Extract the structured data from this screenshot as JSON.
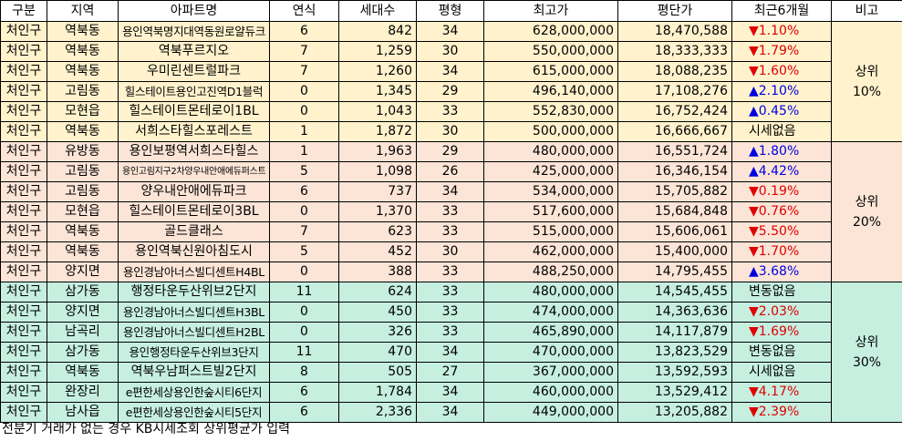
{
  "headers": [
    "구분",
    "지역",
    "아파트명",
    "연식",
    "세대수",
    "평형",
    "최고가",
    "평단가",
    "최근6개월",
    "비고"
  ],
  "groups": [
    {
      "note": "상위\n10%",
      "color": "#fff2cc",
      "rows": [
        [
          "처인구",
          "역북동",
          "용인역북명지대역동원로얄듀크",
          "6",
          "842",
          "34",
          "628,000,000",
          "18,470,588",
          "▼1.10%"
        ],
        [
          "처인구",
          "역북동",
          "역북푸르지오",
          "7",
          "1,259",
          "30",
          "550,000,000",
          "18,333,333",
          "▼1.79%"
        ],
        [
          "처인구",
          "역북동",
          "우미린센트럴파크",
          "7",
          "1,260",
          "34",
          "615,000,000",
          "18,088,235",
          "▼1.60%"
        ],
        [
          "처인구",
          "고림동",
          "힐스테이트용인고진역D1블럭",
          "0",
          "1,345",
          "29",
          "496,140,000",
          "17,108,276",
          "▲2.10%"
        ],
        [
          "처인구",
          "모현읍",
          "힐스테이트몬테로이1BL",
          "0",
          "1,043",
          "33",
          "552,830,000",
          "16,752,424",
          "▲0.45%"
        ],
        [
          "처인구",
          "역북동",
          "서희스타힐스포레스트",
          "1",
          "1,872",
          "30",
          "500,000,000",
          "16,666,667",
          "시세없음"
        ]
      ]
    },
    {
      "note": "상위\n20%",
      "color": "#fce4d6",
      "rows": [
        [
          "처인구",
          "유방동",
          "용인보평역서희스타힐스",
          "1",
          "1,963",
          "29",
          "480,000,000",
          "16,551,724",
          "▲1.80%"
        ],
        [
          "처인구",
          "고림동",
          "용인고림지구2차양우내안애에듀퍼스트",
          "5",
          "1,098",
          "26",
          "425,000,000",
          "16,346,154",
          "▲4.42%"
        ],
        [
          "처인구",
          "고림동",
          "양우내안애에듀파크",
          "6",
          "737",
          "34",
          "534,000,000",
          "15,705,882",
          "▼0.19%"
        ],
        [
          "처인구",
          "모현읍",
          "힐스테이트몬테로이3BL",
          "0",
          "1,370",
          "33",
          "517,600,000",
          "15,684,848",
          "▼0.76%"
        ],
        [
          "처인구",
          "역북동",
          "골드클래스",
          "7",
          "623",
          "33",
          "515,000,000",
          "15,606,061",
          "▼5.50%"
        ],
        [
          "처인구",
          "역북동",
          "용인역북신원아침도시",
          "5",
          "452",
          "30",
          "462,000,000",
          "15,400,000",
          "▼1.70%"
        ],
        [
          "처인구",
          "양지면",
          "용인경남아너스빌디센트H4BL",
          "0",
          "388",
          "33",
          "488,250,000",
          "14,795,455",
          "▲3.68%"
        ]
      ]
    },
    {
      "note": "상위\n30%",
      "color": "#c6efe0",
      "rows": [
        [
          "처인구",
          "삼가동",
          "행정타운두산위브2단지",
          "11",
          "624",
          "33",
          "480,000,000",
          "14,545,455",
          "변동없음"
        ],
        [
          "처인구",
          "양지면",
          "용인경남아너스빌디센트H3BL",
          "0",
          "450",
          "33",
          "474,000,000",
          "14,363,636",
          "▼2.03%"
        ],
        [
          "처인구",
          "남곡리",
          "용인경남아너스빌디센트H2BL",
          "0",
          "326",
          "33",
          "465,890,000",
          "14,117,879",
          "▼1.69%"
        ],
        [
          "처인구",
          "삼가동",
          "용인행정타운두산위브3단지",
          "11",
          "470",
          "34",
          "470,000,000",
          "13,823,529",
          "변동없음"
        ],
        [
          "처인구",
          "역북동",
          "역북우남퍼스트빌2단지",
          "8",
          "505",
          "27",
          "367,000,000",
          "13,592,593",
          "시세없음"
        ],
        [
          "처인구",
          "완장리",
          "e편한세상용인한숲시티6단지",
          "6",
          "1,784",
          "34",
          "460,000,000",
          "13,529,412",
          "▼4.17%"
        ],
        [
          "처인구",
          "남사읍",
          "e편한세상용인한숲시티5단지",
          "6",
          "2,336",
          "34",
          "449,000,000",
          "13,205,882",
          "▼2.39%"
        ]
      ]
    }
  ],
  "footnote": "전분기 거래가 없는 경우 KB시세조회 상위평균가 입력",
  "colors": {
    "down": "#e00000",
    "up": "#0000e0"
  }
}
